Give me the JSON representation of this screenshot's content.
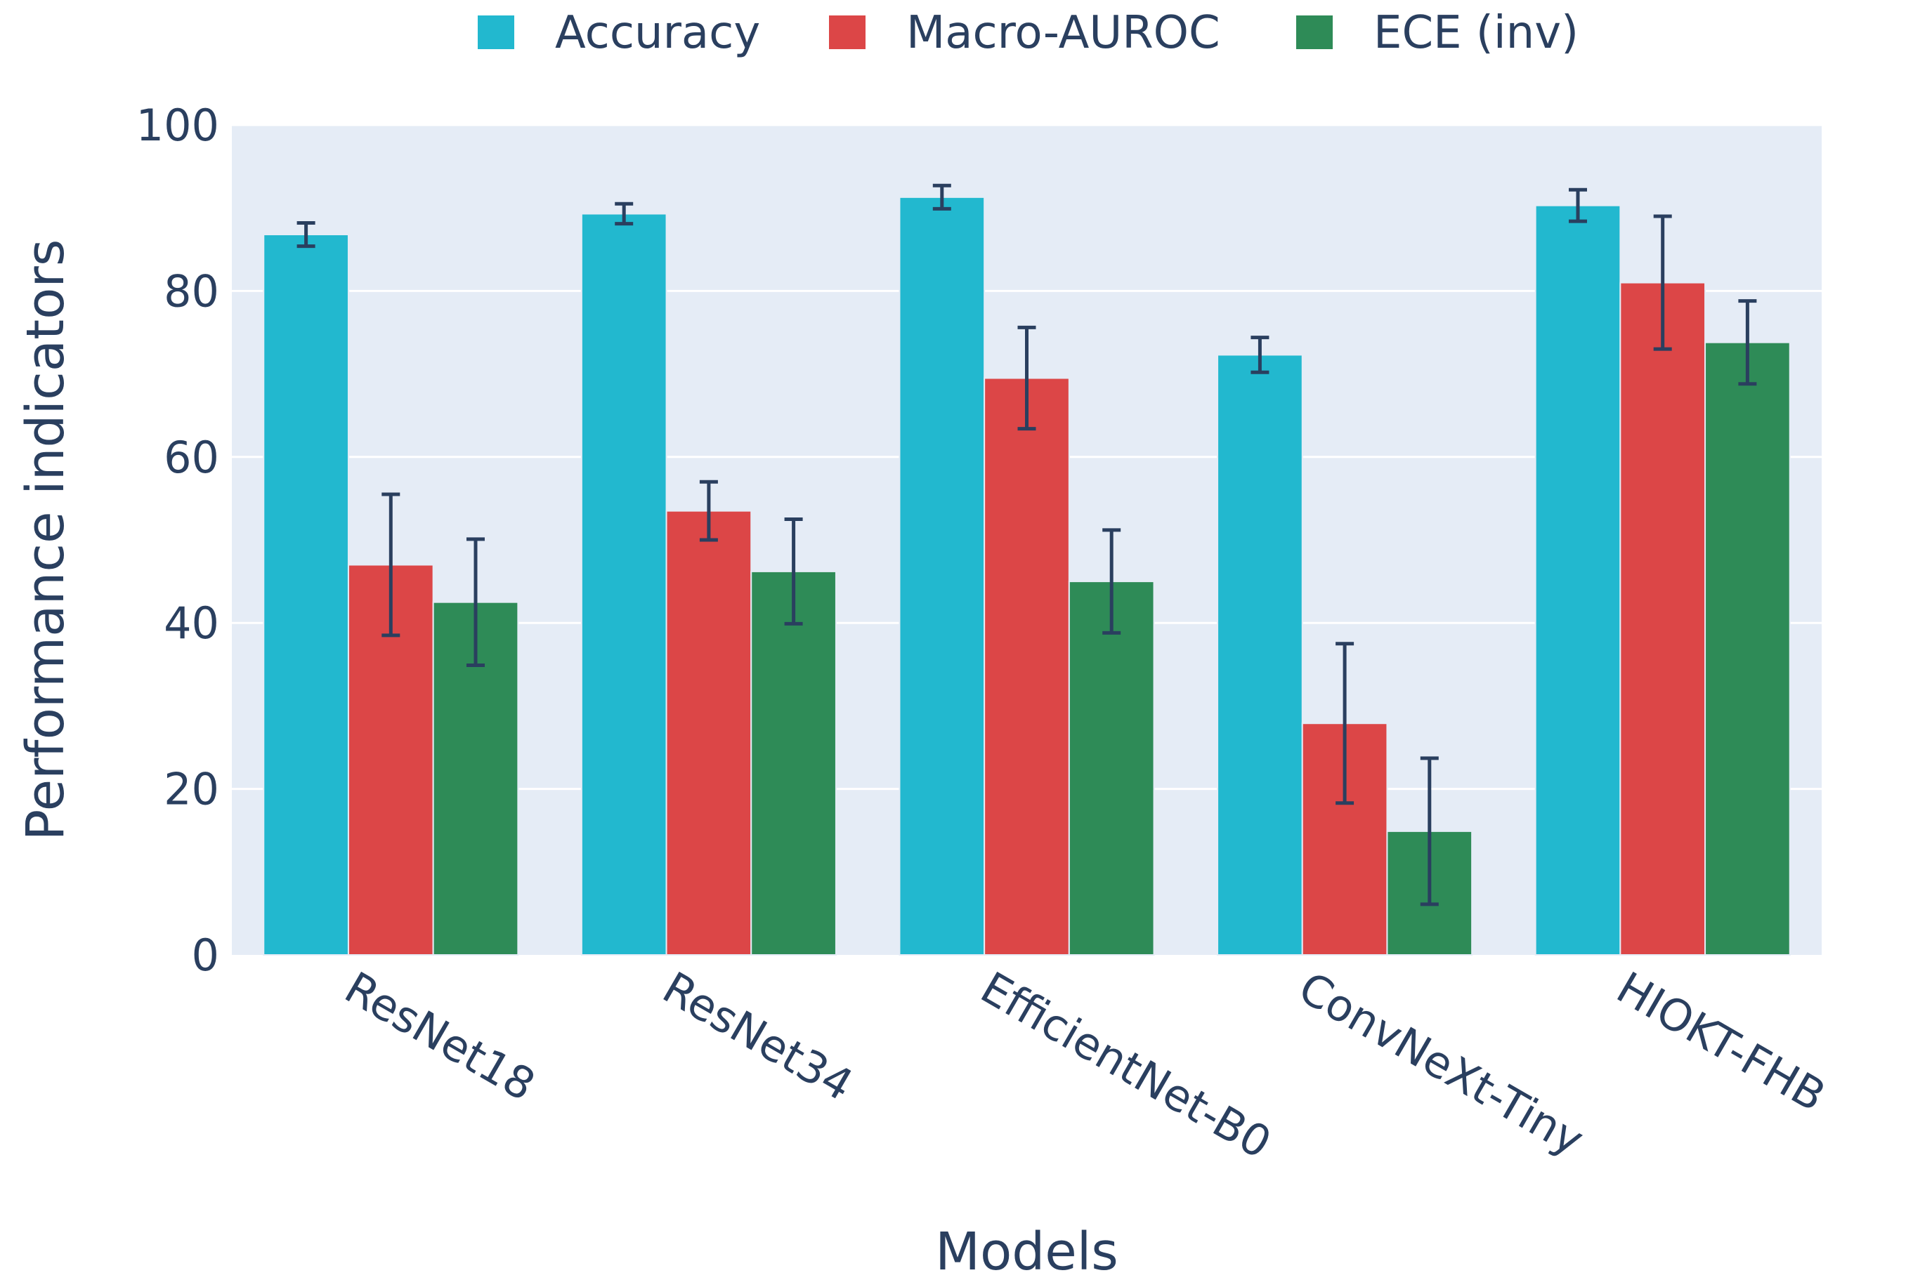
{
  "chart_data": {
    "type": "bar",
    "title": "",
    "xlabel": "Models",
    "ylabel": "Performance indicators",
    "ylim": [
      0,
      100
    ],
    "yticks": [
      0,
      20,
      40,
      60,
      80,
      100
    ],
    "grid": true,
    "legend_position": "top-center",
    "categories": [
      "ResNet18",
      "ResNet34",
      "EfficientNet-B0",
      "ConvNeXt-Tiny",
      "HIOKT-FHB"
    ],
    "series": [
      {
        "name": "Accuracy",
        "color": "#22b8cf",
        "values": [
          86.8,
          89.3,
          91.3,
          72.3,
          90.3
        ],
        "errors": [
          1.4,
          1.2,
          1.4,
          2.1,
          1.9
        ]
      },
      {
        "name": "Macro-AUROC",
        "color": "#dc4647",
        "values": [
          47.0,
          53.5,
          69.5,
          27.9,
          81.0
        ],
        "errors": [
          8.5,
          3.5,
          6.1,
          9.6,
          8.0
        ]
      },
      {
        "name": "ECE (inv)",
        "color": "#2e8b57",
        "values": [
          42.5,
          46.2,
          45.0,
          14.9,
          73.8
        ],
        "errors": [
          7.6,
          6.3,
          6.2,
          8.8,
          5.0
        ]
      }
    ]
  }
}
